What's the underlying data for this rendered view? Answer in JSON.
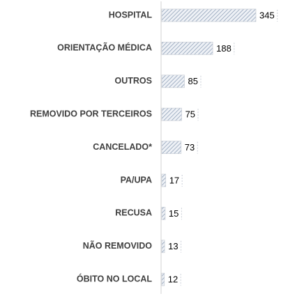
{
  "chart_data": {
    "type": "bar",
    "categories": [
      "HOSPITAL",
      "ORIENTAÇÃO MÉDICA",
      "OUTROS",
      "REMOVIDO POR TERCEIROS",
      "CANCELADO*",
      "PA/UPA",
      "RECUSA",
      "NÃO REMOVIDO",
      "ÓBITO NO LOCAL"
    ],
    "values": [
      345,
      188,
      85,
      75,
      73,
      17,
      15,
      13,
      12
    ],
    "color": "#8497b0"
  }
}
